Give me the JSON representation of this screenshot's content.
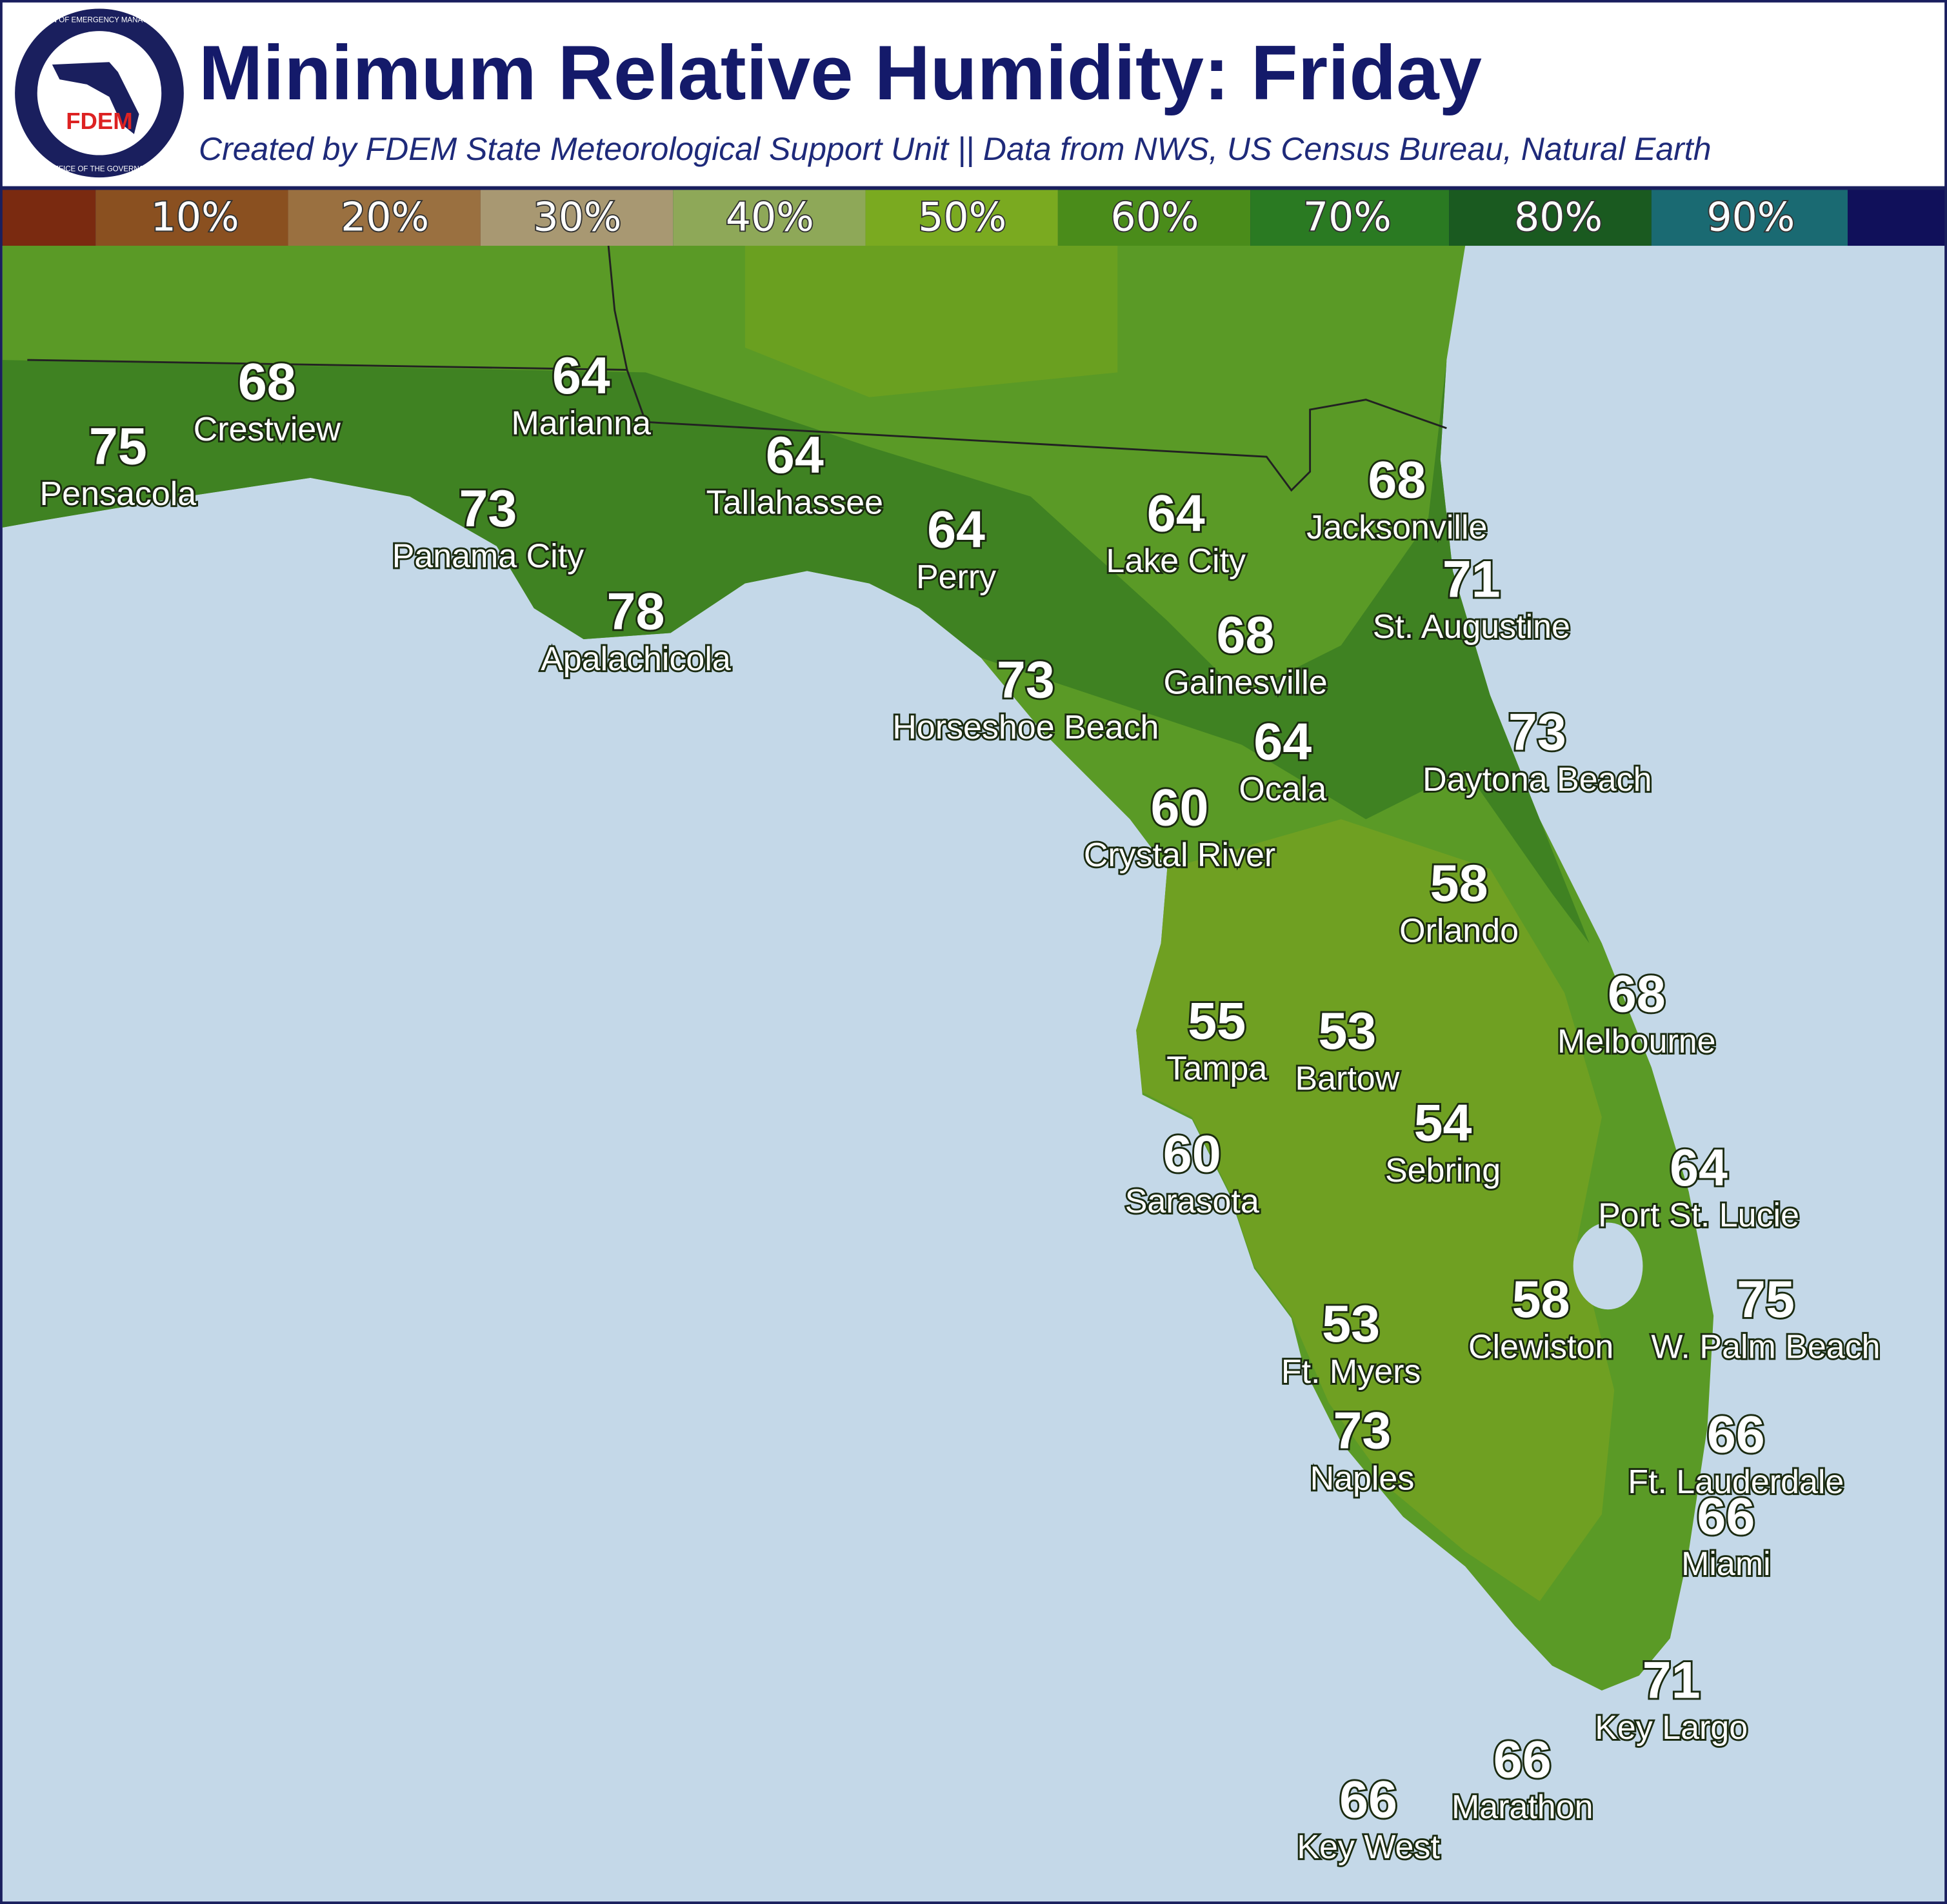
{
  "header": {
    "title": "Minimum Relative Humidity: Friday",
    "subtitle": "Created by FDEM State Meteorological Support Unit || Data from NWS, US Census Bureau, Natural Earth",
    "logo_text": "FDEM",
    "logo_ring_top": "DIVISION OF EMERGENCY MANAGEMENT",
    "logo_ring_bottom": "OFFICE OF THE GOVERNOR"
  },
  "legend": {
    "labels": [
      "10%",
      "20%",
      "30%",
      "40%",
      "50%",
      "60%",
      "70%",
      "80%",
      "90%"
    ]
  },
  "cities": [
    {
      "name": "Crestview",
      "value": 68
    },
    {
      "name": "Pensacola",
      "value": 75
    },
    {
      "name": "Marianna",
      "value": 64
    },
    {
      "name": "Tallahassee",
      "value": 64
    },
    {
      "name": "Panama City",
      "value": 73
    },
    {
      "name": "Apalachicola",
      "value": 78
    },
    {
      "name": "Perry",
      "value": 64
    },
    {
      "name": "Lake City",
      "value": 64
    },
    {
      "name": "Jacksonville",
      "value": 68
    },
    {
      "name": "St. Augustine",
      "value": 71
    },
    {
      "name": "Gainesville",
      "value": 68
    },
    {
      "name": "Horseshoe Beach",
      "value": 73
    },
    {
      "name": "Ocala",
      "value": 64
    },
    {
      "name": "Daytona Beach",
      "value": 73
    },
    {
      "name": "Crystal River",
      "value": 60
    },
    {
      "name": "Orlando",
      "value": 58
    },
    {
      "name": "Melbourne",
      "value": 68
    },
    {
      "name": "Tampa",
      "value": 55
    },
    {
      "name": "Bartow",
      "value": 53
    },
    {
      "name": "Sebring",
      "value": 54
    },
    {
      "name": "Sarasota",
      "value": 60
    },
    {
      "name": "Port St. Lucie",
      "value": 64
    },
    {
      "name": "Clewiston",
      "value": 58
    },
    {
      "name": "W. Palm Beach",
      "value": 75
    },
    {
      "name": "Ft. Myers",
      "value": 53
    },
    {
      "name": "Naples",
      "value": 73
    },
    {
      "name": "Ft. Lauderdale",
      "value": 66
    },
    {
      "name": "Miami",
      "value": 66
    },
    {
      "name": "Key Largo",
      "value": 71
    },
    {
      "name": "Marathon",
      "value": 66
    },
    {
      "name": "Key West",
      "value": 66
    }
  ]
}
